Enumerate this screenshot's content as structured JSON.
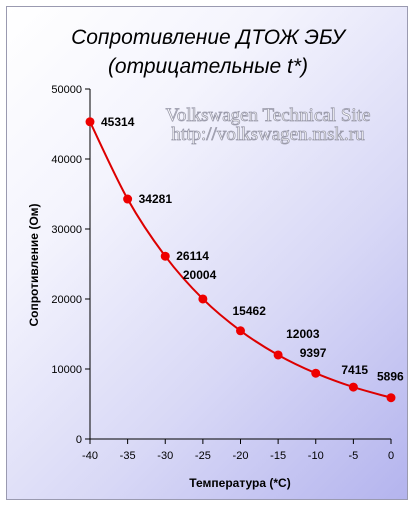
{
  "chart_data": {
    "type": "line",
    "title": "Сопротивление ДТОЖ  ЭБУ",
    "subtitle": "(отрицательные t*)",
    "xlabel": "Температура (*С)",
    "ylabel": "Сопротивление (Ом)",
    "x": [
      -40,
      -35,
      -30,
      -25,
      -20,
      -15,
      -10,
      -5,
      0
    ],
    "series": [
      {
        "values": [
          45314,
          34281,
          26114,
          20004,
          15462,
          12003,
          9397,
          7415,
          5896
        ]
      }
    ],
    "data_labels": [
      "45314",
      "34281",
      "26114",
      "20004",
      "15462",
      "12003",
      "9397",
      "7415",
      "5896"
    ],
    "xlim": [
      -40,
      0
    ],
    "ylim": [
      0,
      50000
    ],
    "x_ticks": [
      "-40",
      "-35",
      "-30",
      "-25",
      "-20",
      "-15",
      "-10",
      "-5",
      "0"
    ],
    "y_ticks": [
      "0",
      "10000",
      "20000",
      "30000",
      "40000",
      "50000"
    ],
    "grid": false,
    "legend": "none",
    "line_color": "#dd0000",
    "marker_color": "#ee0000"
  },
  "watermark": {
    "line1": "Volkswagen Technical Site",
    "line2": "http://volkswagen.msk.ru"
  }
}
